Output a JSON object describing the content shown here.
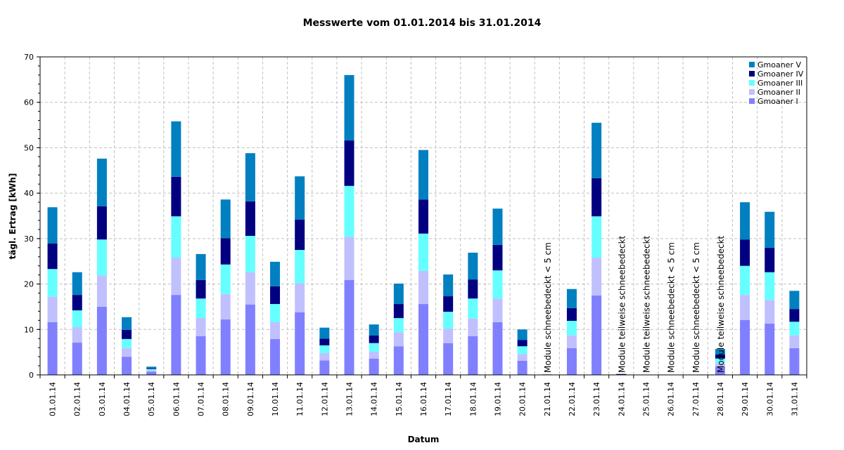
{
  "chart_data": {
    "type": "bar",
    "stacked": true,
    "title": "Messwerte vom 01.01.2014 bis 31.01.2014",
    "xlabel": "Datum",
    "ylabel": "tägl. Ertrag [kWh]",
    "ylim": [
      0,
      70
    ],
    "yticks": [
      0,
      10,
      20,
      30,
      40,
      50,
      60,
      70
    ],
    "grid": true,
    "legend_position": "top-right",
    "categories": [
      "01.01.14",
      "02.01.14",
      "03.01.14",
      "04.01.14",
      "05.01.14",
      "06.01.14",
      "07.01.14",
      "08.01.14",
      "09.01.14",
      "10.01.14",
      "11.01.14",
      "12.01.14",
      "13.01.14",
      "14.01.14",
      "15.01.14",
      "16.01.14",
      "17.01.14",
      "18.01.14",
      "19.01.14",
      "20.01.14",
      "21.01.14",
      "22.01.14",
      "23.01.14",
      "24.01.14",
      "25.01.14",
      "26.01.14",
      "27.01.14",
      "28.01.14",
      "29.01.14",
      "30.01.14",
      "31.01.14"
    ],
    "series": [
      {
        "name": "Gmoaner I",
        "color": "#8080FF",
        "values": [
          11.6,
          7.1,
          15.0,
          4.0,
          0.7,
          17.6,
          8.5,
          12.2,
          15.5,
          7.9,
          13.8,
          3.2,
          20.9,
          3.6,
          6.3,
          15.6,
          7.0,
          8.5,
          11.6,
          3.1,
          0.1,
          5.9,
          17.5,
          0,
          0,
          0,
          0,
          1.9,
          12.1,
          11.3,
          5.9
        ]
      },
      {
        "name": "Gmoaner II",
        "color": "#C0C0FF",
        "values": [
          5.6,
          3.4,
          6.9,
          1.9,
          0.3,
          8.2,
          4.0,
          5.6,
          7.1,
          3.7,
          6.4,
          1.6,
          9.5,
          1.5,
          3.1,
          7.3,
          3.2,
          3.9,
          5.2,
          1.5,
          0.1,
          2.8,
          8.3,
          0,
          0,
          0,
          0,
          0.7,
          5.5,
          5.2,
          2.8
        ]
      },
      {
        "name": "Gmoaner III",
        "color": "#66FFFF",
        "values": [
          6.1,
          3.7,
          7.9,
          2.0,
          0.3,
          9.1,
          4.3,
          6.5,
          8.0,
          4.0,
          7.3,
          1.7,
          11.2,
          1.9,
          3.1,
          8.2,
          3.7,
          4.4,
          6.2,
          1.7,
          0,
          3.2,
          9.1,
          0,
          0,
          0,
          0,
          1.0,
          6.4,
          6.1,
          3.0
        ]
      },
      {
        "name": "Gmoaner IV",
        "color": "#000080",
        "values": [
          5.6,
          3.4,
          7.3,
          2.0,
          0.2,
          8.7,
          4.1,
          5.8,
          7.6,
          3.9,
          6.7,
          1.5,
          10.0,
          1.7,
          3.1,
          7.5,
          3.4,
          4.2,
          5.6,
          1.4,
          0,
          2.8,
          8.4,
          0.2,
          0,
          0,
          0,
          0.9,
          5.8,
          5.4,
          2.8
        ]
      },
      {
        "name": "Gmoaner V",
        "color": "#0080C0",
        "values": [
          8.0,
          5.0,
          10.5,
          2.8,
          0.3,
          12.2,
          5.7,
          8.5,
          10.6,
          5.4,
          9.5,
          2.4,
          14.4,
          2.4,
          4.5,
          10.9,
          4.8,
          5.9,
          8.0,
          2.3,
          0,
          4.2,
          12.2,
          0,
          0,
          0,
          0,
          1.2,
          8.2,
          7.9,
          4.0
        ]
      }
    ],
    "annotations": [
      {
        "category": "21.01.14",
        "text": "Module schneebedeckt < 5 cm"
      },
      {
        "category": "24.01.14",
        "text": "Module teilweise schneebedeckt"
      },
      {
        "category": "25.01.14",
        "text": "Module teilweise schneebedeckt"
      },
      {
        "category": "26.01.14",
        "text": "Module schneebedeckt < 5 cm"
      },
      {
        "category": "27.01.14",
        "text": "Module schneebedeckt < 5 cm"
      },
      {
        "category": "28.01.14",
        "text": "Module teilweise schneebedeckt"
      }
    ]
  }
}
